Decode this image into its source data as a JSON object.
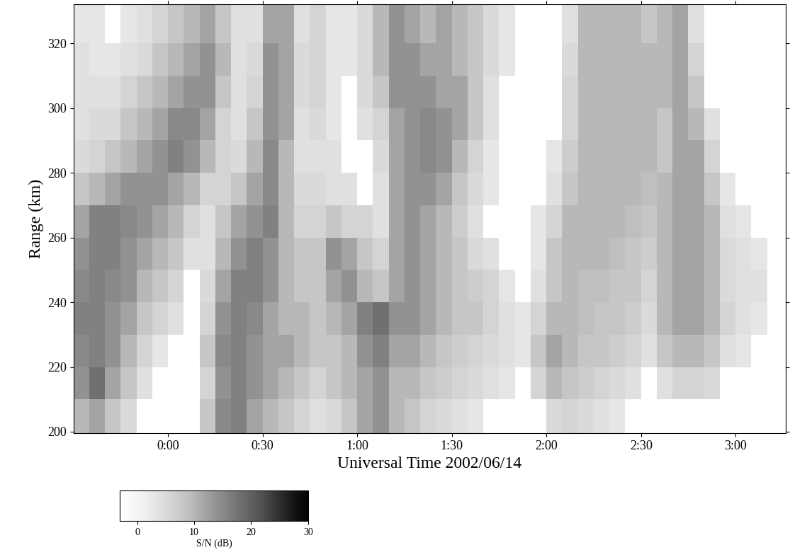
{
  "chart_data": {
    "type": "heatmap",
    "x_label": "Universal Time 2002/06/14",
    "y_label": "Range (km)",
    "xlim": [
      -30,
      196
    ],
    "xticks": [
      {
        "value": 0,
        "label": "0:00"
      },
      {
        "value": 30,
        "label": "0:30"
      },
      {
        "value": 60,
        "label": "1:00"
      },
      {
        "value": 90,
        "label": "1:30"
      },
      {
        "value": 120,
        "label": "2:00"
      },
      {
        "value": 150,
        "label": "2:30"
      },
      {
        "value": 180,
        "label": "3:00"
      }
    ],
    "ylim": [
      199.5,
      332
    ],
    "yticks": [
      200,
      220,
      240,
      260,
      280,
      300,
      320
    ],
    "color": "Greys",
    "x_edges": [
      -30,
      -25,
      -20,
      -15,
      -10,
      -5,
      0,
      5,
      10,
      15,
      20,
      25,
      30,
      35,
      40,
      45,
      50,
      55,
      60,
      65,
      70,
      75,
      80,
      85,
      90,
      95,
      100,
      105,
      110,
      115,
      120,
      125,
      130,
      135,
      140,
      145,
      150,
      155,
      160,
      165,
      170,
      175,
      180,
      185,
      190,
      196
    ],
    "y_edges": [
      199.5,
      210,
      220,
      230,
      240,
      250,
      260,
      270,
      280,
      290,
      300,
      310,
      320,
      332
    ],
    "cells": [
      [
        10,
        12,
        8,
        5,
        null,
        null,
        null,
        null,
        8,
        15,
        16,
        12,
        10,
        8,
        6,
        4,
        5,
        8,
        12,
        14,
        10,
        8,
        6,
        5,
        4,
        3,
        null,
        null,
        null,
        null,
        5,
        6,
        5,
        4,
        3,
        null,
        null,
        null,
        null,
        null,
        null,
        null,
        null,
        null,
        null
      ],
      [
        14,
        18,
        12,
        8,
        4,
        null,
        null,
        null,
        6,
        14,
        16,
        14,
        12,
        10,
        8,
        6,
        8,
        10,
        12,
        14,
        10,
        10,
        8,
        7,
        6,
        5,
        4,
        3,
        null,
        6,
        10,
        8,
        7,
        6,
        5,
        4,
        null,
        4,
        6,
        6,
        5,
        null,
        null,
        null,
        null
      ],
      [
        15,
        16,
        14,
        10,
        6,
        3,
        null,
        null,
        8,
        15,
        16,
        14,
        12,
        12,
        10,
        8,
        8,
        10,
        14,
        16,
        12,
        12,
        10,
        8,
        7,
        6,
        5,
        4,
        3,
        8,
        12,
        10,
        8,
        8,
        7,
        6,
        4,
        8,
        10,
        10,
        8,
        4,
        3,
        null,
        null
      ],
      [
        16,
        16,
        14,
        12,
        8,
        6,
        4,
        null,
        6,
        14,
        16,
        15,
        12,
        10,
        10,
        8,
        10,
        12,
        16,
        18,
        14,
        14,
        12,
        10,
        8,
        8,
        6,
        4,
        3,
        6,
        10,
        10,
        9,
        8,
        8,
        7,
        5,
        10,
        12,
        12,
        10,
        6,
        4,
        3,
        null
      ],
      [
        15,
        16,
        15,
        14,
        10,
        8,
        6,
        null,
        5,
        12,
        16,
        16,
        14,
        10,
        8,
        8,
        12,
        14,
        10,
        8,
        12,
        14,
        12,
        10,
        8,
        7,
        6,
        3,
        null,
        4,
        8,
        10,
        9,
        9,
        8,
        8,
        6,
        10,
        12,
        12,
        10,
        5,
        4,
        4,
        null
      ],
      [
        14,
        16,
        16,
        14,
        12,
        10,
        8,
        4,
        4,
        10,
        14,
        16,
        14,
        10,
        8,
        8,
        14,
        12,
        8,
        6,
        12,
        14,
        12,
        10,
        8,
        5,
        4,
        null,
        null,
        3,
        8,
        10,
        10,
        10,
        9,
        8,
        7,
        10,
        12,
        12,
        10,
        5,
        4,
        3,
        null
      ],
      [
        12,
        16,
        16,
        15,
        14,
        12,
        10,
        6,
        4,
        8,
        12,
        14,
        16,
        10,
        6,
        6,
        8,
        6,
        6,
        4,
        12,
        14,
        12,
        10,
        7,
        4,
        null,
        null,
        null,
        3,
        6,
        10,
        10,
        10,
        10,
        9,
        8,
        10,
        12,
        12,
        10,
        4,
        3,
        null,
        null
      ],
      [
        8,
        10,
        12,
        14,
        14,
        14,
        12,
        10,
        6,
        6,
        8,
        12,
        15,
        10,
        5,
        5,
        4,
        4,
        null,
        4,
        12,
        14,
        14,
        12,
        8,
        5,
        3,
        null,
        null,
        null,
        4,
        8,
        10,
        10,
        10,
        10,
        9,
        10,
        12,
        12,
        8,
        3,
        null,
        null,
        null
      ],
      [
        5,
        6,
        8,
        10,
        12,
        14,
        16,
        14,
        10,
        6,
        5,
        10,
        15,
        10,
        4,
        4,
        4,
        null,
        null,
        5,
        12,
        14,
        15,
        14,
        10,
        6,
        3,
        null,
        null,
        null,
        3,
        7,
        10,
        10,
        10,
        10,
        10,
        8,
        12,
        12,
        6,
        null,
        null,
        null,
        null
      ],
      [
        4,
        5,
        5,
        8,
        10,
        12,
        15,
        15,
        12,
        6,
        4,
        8,
        14,
        12,
        4,
        5,
        3,
        null,
        4,
        6,
        12,
        14,
        15,
        14,
        12,
        8,
        4,
        null,
        null,
        null,
        null,
        6,
        10,
        10,
        10,
        10,
        10,
        8,
        12,
        10,
        4,
        null,
        null,
        null,
        null
      ],
      [
        4,
        4,
        4,
        6,
        8,
        10,
        12,
        14,
        14,
        8,
        4,
        6,
        14,
        12,
        5,
        6,
        3,
        null,
        5,
        8,
        14,
        14,
        14,
        12,
        12,
        8,
        4,
        null,
        null,
        null,
        null,
        6,
        10,
        10,
        10,
        10,
        10,
        10,
        12,
        8,
        null,
        null,
        null,
        null,
        null
      ],
      [
        4,
        3,
        3,
        4,
        5,
        8,
        10,
        12,
        14,
        10,
        4,
        5,
        14,
        12,
        5,
        6,
        3,
        3,
        5,
        10,
        14,
        14,
        12,
        12,
        10,
        8,
        5,
        3,
        null,
        null,
        null,
        5,
        10,
        10,
        10,
        10,
        10,
        10,
        12,
        6,
        null,
        null,
        null,
        null,
        null
      ],
      [
        3,
        3,
        null,
        3,
        4,
        6,
        8,
        10,
        12,
        8,
        4,
        4,
        12,
        12,
        4,
        6,
        3,
        3,
        5,
        10,
        14,
        12,
        10,
        12,
        10,
        8,
        5,
        3,
        null,
        null,
        null,
        4,
        10,
        10,
        10,
        10,
        8,
        10,
        12,
        4,
        null,
        null,
        null,
        null,
        null
      ]
    ],
    "colorbar": {
      "label": "S/N (dB)",
      "range": [
        -3,
        30
      ],
      "ticks": [
        0,
        10,
        20,
        30
      ]
    }
  }
}
